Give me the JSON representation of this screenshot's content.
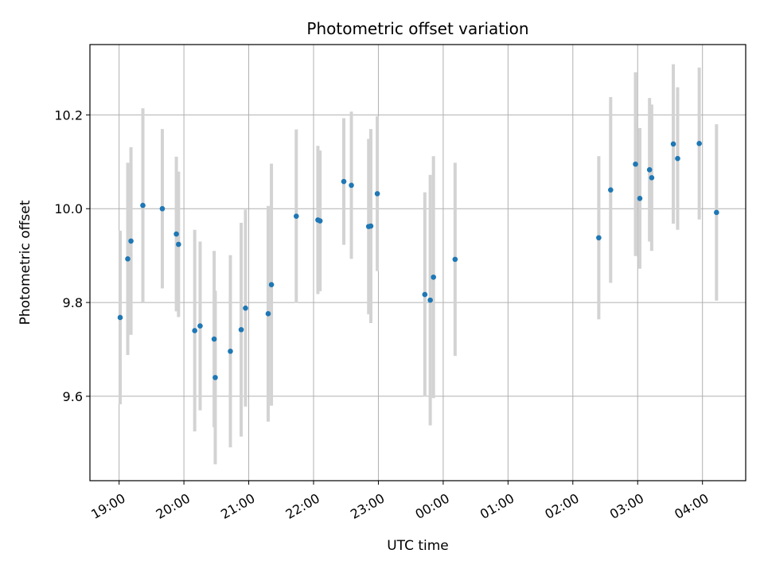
{
  "chart_data": {
    "type": "scatter",
    "title": "Photometric offset variation",
    "xlabel": "UTC time",
    "ylabel": "Photometric offset",
    "grid": true,
    "x_start": "19:00",
    "xlim": [
      "18:33",
      "04:40"
    ],
    "ylim": [
      9.42,
      10.35
    ],
    "x_ticks": [
      "19:00",
      "20:00",
      "21:00",
      "22:00",
      "23:00",
      "00:00",
      "01:00",
      "02:00",
      "03:00",
      "04:00"
    ],
    "y_ticks": [
      9.6,
      9.8,
      10.0,
      10.2
    ],
    "y_tick_labels": [
      "9.6",
      "9.8",
      "10.0",
      "10.2"
    ],
    "point_color": "#1f77b4",
    "errorbar_color": "#d3d3d3",
    "series": [
      {
        "points": [
          {
            "x": "19:01",
            "y": 9.768,
            "err": 0.185
          },
          {
            "x": "19:08",
            "y": 9.893,
            "err": 0.205
          },
          {
            "x": "19:11",
            "y": 9.931,
            "err": 0.2
          },
          {
            "x": "19:22",
            "y": 10.007,
            "err": 0.207
          },
          {
            "x": "19:40",
            "y": 10.0,
            "err": 0.17
          },
          {
            "x": "19:53",
            "y": 9.946,
            "err": 0.165
          },
          {
            "x": "19:55",
            "y": 9.924,
            "err": 0.155
          },
          {
            "x": "20:10",
            "y": 9.74,
            "err": 0.215
          },
          {
            "x": "20:15",
            "y": 9.75,
            "err": 0.18
          },
          {
            "x": "20:28",
            "y": 9.722,
            "err": 0.188
          },
          {
            "x": "20:29",
            "y": 9.64,
            "err": 0.185
          },
          {
            "x": "20:43",
            "y": 9.696,
            "err": 0.205
          },
          {
            "x": "20:53",
            "y": 9.742,
            "err": 0.228
          },
          {
            "x": "20:57",
            "y": 9.788,
            "err": 0.21
          },
          {
            "x": "21:18",
            "y": 9.776,
            "err": 0.23
          },
          {
            "x": "21:21",
            "y": 9.838,
            "err": 0.258
          },
          {
            "x": "21:44",
            "y": 9.984,
            "err": 0.185
          },
          {
            "x": "22:04",
            "y": 9.976,
            "err": 0.158
          },
          {
            "x": "22:06",
            "y": 9.974,
            "err": 0.15
          },
          {
            "x": "22:28",
            "y": 10.058,
            "err": 0.135
          },
          {
            "x": "22:35",
            "y": 10.05,
            "err": 0.157
          },
          {
            "x": "22:51",
            "y": 9.962,
            "err": 0.187
          },
          {
            "x": "22:53",
            "y": 9.963,
            "err": 0.207
          },
          {
            "x": "22:59",
            "y": 10.032,
            "err": 0.165
          },
          {
            "x": "23:43",
            "y": 9.817,
            "err": 0.218
          },
          {
            "x": "23:48",
            "y": 9.805,
            "err": 0.267
          },
          {
            "x": "23:51",
            "y": 9.854,
            "err": 0.258
          },
          {
            "x": "00:11",
            "y": 9.892,
            "err": 0.206
          },
          {
            "x": "02:24",
            "y": 9.938,
            "err": 0.174
          },
          {
            "x": "02:35",
            "y": 10.04,
            "err": 0.198
          },
          {
            "x": "02:58",
            "y": 10.095,
            "err": 0.196
          },
          {
            "x": "03:02",
            "y": 10.022,
            "err": 0.15
          },
          {
            "x": "03:11",
            "y": 10.083,
            "err": 0.153
          },
          {
            "x": "03:13",
            "y": 10.066,
            "err": 0.156
          },
          {
            "x": "03:33",
            "y": 10.138,
            "err": 0.17
          },
          {
            "x": "03:37",
            "y": 10.107,
            "err": 0.152
          },
          {
            "x": "03:57",
            "y": 10.139,
            "err": 0.162
          },
          {
            "x": "04:13",
            "y": 9.992,
            "err": 0.188
          }
        ]
      }
    ]
  }
}
